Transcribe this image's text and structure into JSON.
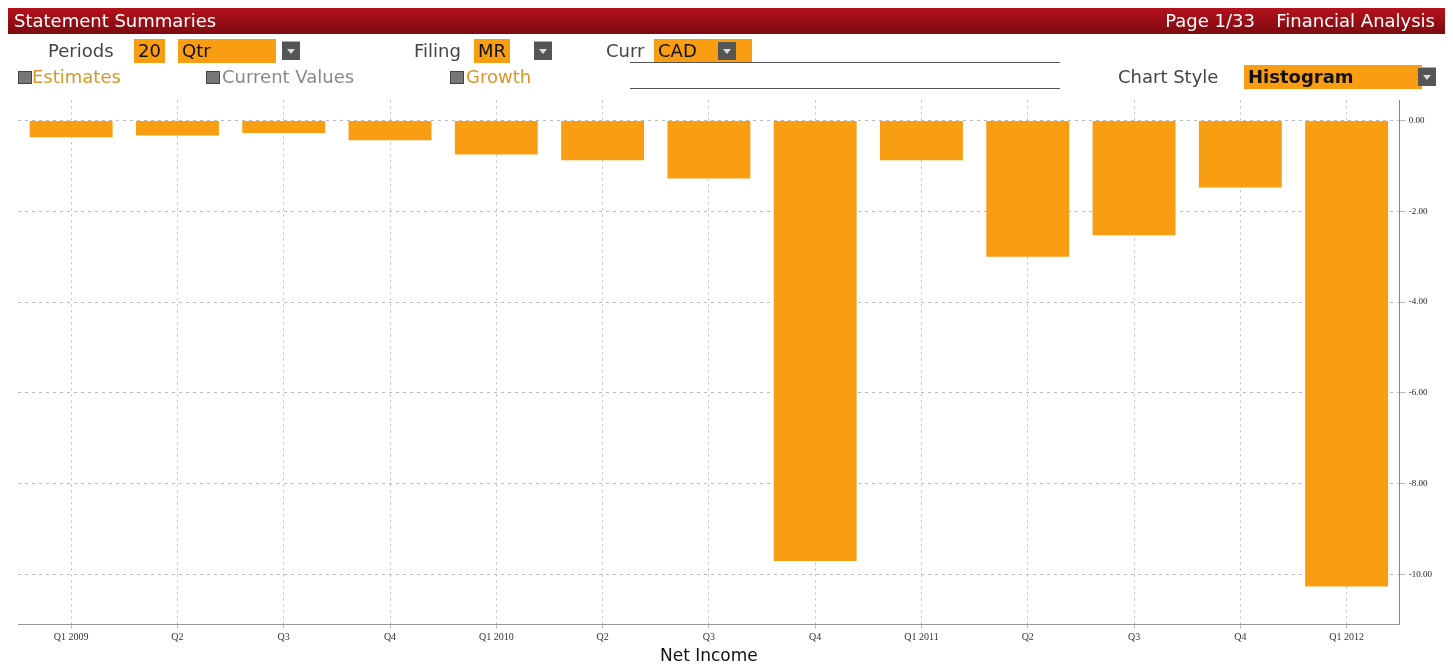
{
  "chart_data": {
    "type": "bar",
    "title": "Statement Summaries",
    "subtitle": "Financial Analysis",
    "xlabel": "Net Income",
    "annotations": [
      "Page 1/33",
      "Periods",
      "20",
      "Qtr",
      "Filing",
      "MR",
      "Curr",
      "CAD",
      "Estimates",
      "Current Values",
      "Growth",
      "Chart Style",
      "Histogram"
    ],
    "categories": [
      "Q1 2009",
      "Q2",
      "Q3",
      "Q4",
      "Q1 2010",
      "Q2",
      "Q3",
      "Q4",
      "Q1 2011",
      "Q2",
      "Q3",
      "Q4",
      "Q1 2012"
    ],
    "values": [
      -0.37,
      -0.33,
      -0.28,
      -0.44,
      -0.75,
      -0.88,
      -1.28,
      -9.7,
      -0.88,
      -3.0,
      -2.53,
      -1.48,
      -10.26
    ],
    "color": "#f99d12",
    "ylim": [
      -11.1,
      0.44
    ],
    "yticks": [
      {
        "value": 0,
        "label": "0.00"
      },
      {
        "value": -2,
        "label": "-2.00"
      },
      {
        "value": -4,
        "label": "-4.00"
      },
      {
        "value": -6,
        "label": "-6.00"
      },
      {
        "value": -8,
        "label": "-8.00"
      },
      {
        "value": -10,
        "label": "-10.00"
      }
    ],
    "grid": true,
    "legend": false
  }
}
